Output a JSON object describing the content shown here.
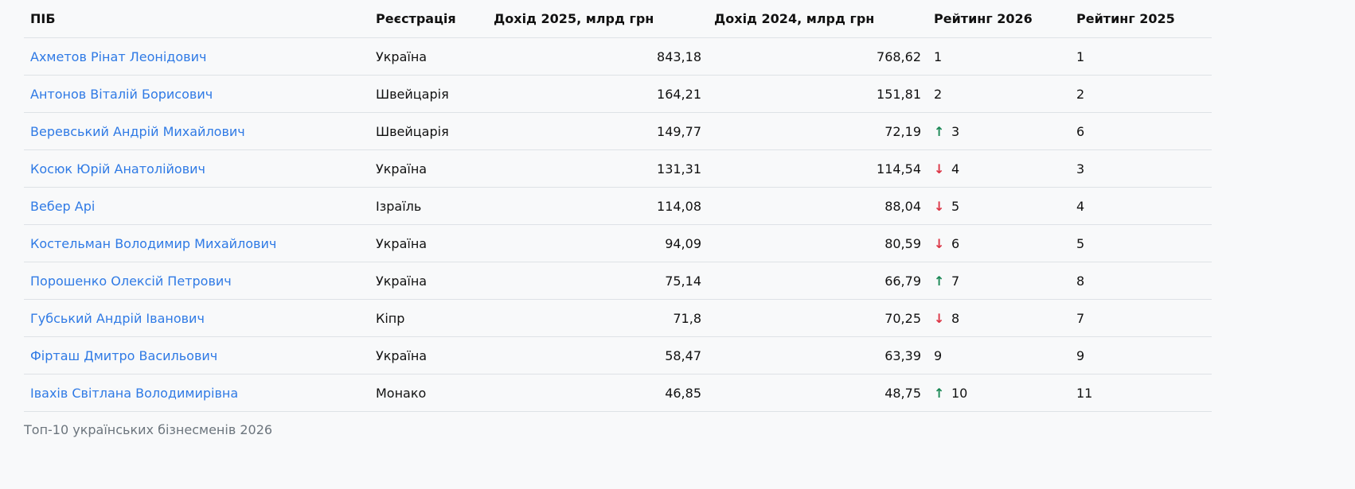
{
  "table": {
    "headers": [
      "ПІБ",
      "Реєстрація",
      "Дохід 2025, млрд грн",
      "Дохід 2024, млрд грн",
      "Рейтинг 2026",
      "Рейтинг 2025"
    ],
    "rows": [
      {
        "name": "Ахметов Рінат Леонідович",
        "reg": "Україна",
        "inc2025": "843,18",
        "inc2024": "768,62",
        "trend": "",
        "rank2026": "1",
        "rank2025": "1"
      },
      {
        "name": "Антонов Віталій Борисович",
        "reg": "Швейцарія",
        "inc2025": "164,21",
        "inc2024": "151,81",
        "trend": "",
        "rank2026": "2",
        "rank2025": "2"
      },
      {
        "name": "Веревський Андрій Михайлович",
        "reg": "Швейцарія",
        "inc2025": "149,77",
        "inc2024": "72,19",
        "trend": "up",
        "rank2026": "3",
        "rank2025": "6"
      },
      {
        "name": "Косюк Юрій Анатолійович",
        "reg": "Україна",
        "inc2025": "131,31",
        "inc2024": "114,54",
        "trend": "down",
        "rank2026": "4",
        "rank2025": "3"
      },
      {
        "name": "Вебер Арі",
        "reg": "Ізраїль",
        "inc2025": "114,08",
        "inc2024": "88,04",
        "trend": "down",
        "rank2026": "5",
        "rank2025": "4"
      },
      {
        "name": "Костельман Володимир Михайлович",
        "reg": "Україна",
        "inc2025": "94,09",
        "inc2024": "80,59",
        "trend": "down",
        "rank2026": "6",
        "rank2025": "5"
      },
      {
        "name": "Порошенко Олексій Петрович",
        "reg": "Україна",
        "inc2025": "75,14",
        "inc2024": "66,79",
        "trend": "up",
        "rank2026": "7",
        "rank2025": "8"
      },
      {
        "name": "Губський Андрій Іванович",
        "reg": "Кіпр",
        "inc2025": "71,8",
        "inc2024": "70,25",
        "trend": "down",
        "rank2026": "8",
        "rank2025": "7"
      },
      {
        "name": "Фірташ Дмитро Васильович",
        "reg": "Україна",
        "inc2025": "58,47",
        "inc2024": "63,39",
        "trend": "",
        "rank2026": "9",
        "rank2025": "9"
      },
      {
        "name": "Івахів Світлана Володимирівна",
        "reg": "Монако",
        "inc2025": "46,85",
        "inc2024": "48,75",
        "trend": "up",
        "rank2026": "10",
        "rank2025": "11"
      }
    ]
  },
  "caption": "Топ-10 українських бізнесменів 2026",
  "colors": {
    "link": "#2f7ae5",
    "up": "#198754",
    "down": "#dc3545",
    "background": "#f8f9fa"
  }
}
